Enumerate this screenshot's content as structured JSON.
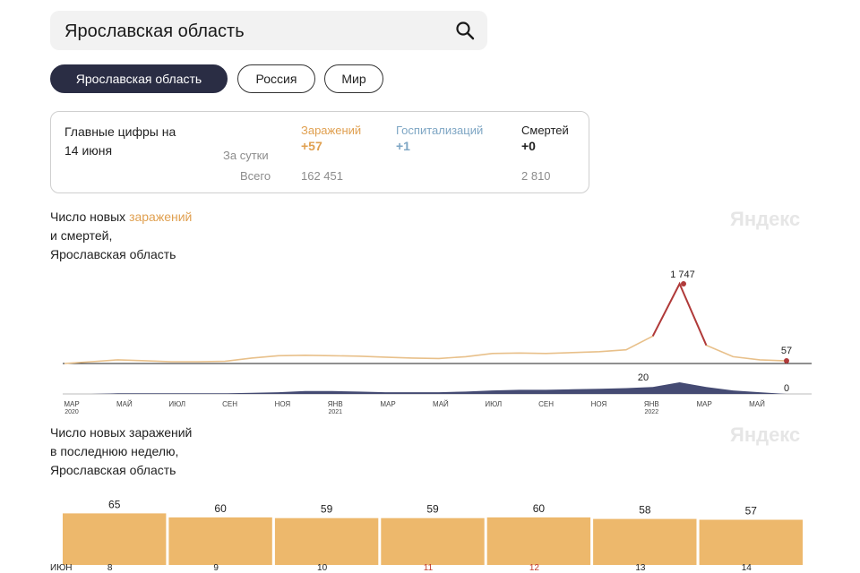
{
  "search": {
    "value": "Ярославская область",
    "icon": "search-icon"
  },
  "chips": [
    {
      "label": "Ярославская область",
      "active": true
    },
    {
      "label": "Россия",
      "active": false
    },
    {
      "label": "Мир",
      "active": false
    }
  ],
  "summary": {
    "heading_line1": "Главные цифры на",
    "heading_line2": "14 июня",
    "row_day_label": "За сутки",
    "row_total_label": "Всего",
    "columns": [
      {
        "label": "Заражений",
        "day": "+57",
        "total": "162 451",
        "color": "#e0a050"
      },
      {
        "label": "Госпитализаций",
        "day": "+1",
        "total": "",
        "color": "#7ea6c4"
      },
      {
        "label": "Смертей",
        "day": "+0",
        "total": "2 810",
        "color": "#1f1f1f"
      }
    ]
  },
  "chart1": {
    "title_line1_prefix": "Число новых ",
    "title_line1_highlight": "заражений",
    "title_line2": "и смертей,",
    "title_line3": "Ярославская область",
    "watermark": "Яндекс",
    "peak_label": "1 747",
    "last_label": "57",
    "deaths_peak_label": "20",
    "deaths_last_label": "0",
    "x_ticks": [
      {
        "label": "МАР",
        "sub": "2020"
      },
      {
        "label": "МАЙ",
        "sub": ""
      },
      {
        "label": "ИЮЛ",
        "sub": ""
      },
      {
        "label": "СЕН",
        "sub": ""
      },
      {
        "label": "НОЯ",
        "sub": ""
      },
      {
        "label": "ЯНВ",
        "sub": "2021"
      },
      {
        "label": "МАР",
        "sub": ""
      },
      {
        "label": "МАЙ",
        "sub": ""
      },
      {
        "label": "ИЮЛ",
        "sub": ""
      },
      {
        "label": "СЕН",
        "sub": ""
      },
      {
        "label": "НОЯ",
        "sub": ""
      },
      {
        "label": "ЯНВ",
        "sub": "2022"
      },
      {
        "label": "МАР",
        "sub": ""
      },
      {
        "label": "МАЙ",
        "sub": ""
      }
    ]
  },
  "chart2": {
    "title_line1": "Число новых заражений",
    "title_line2": "в последнюю неделю,",
    "title_line3": "Ярославская область",
    "watermark": "Яндекс",
    "month_label": "ИЮН"
  },
  "chart_data": [
    {
      "type": "line",
      "x": [
        "2020-03",
        "2020-04",
        "2020-05",
        "2020-06",
        "2020-07",
        "2020-08",
        "2020-09",
        "2020-10",
        "2020-11",
        "2020-12",
        "2021-01",
        "2021-02",
        "2021-03",
        "2021-04",
        "2021-05",
        "2021-06",
        "2021-07",
        "2021-08",
        "2021-09",
        "2021-10",
        "2021-11",
        "2021-12",
        "2022-01",
        "2022-02",
        "2022-03",
        "2022-04",
        "2022-05",
        "2022-06"
      ],
      "series": [
        {
          "name": "Заражений",
          "values": [
            0,
            40,
            80,
            60,
            40,
            40,
            50,
            120,
            170,
            180,
            170,
            160,
            140,
            120,
            110,
            150,
            220,
            230,
            220,
            240,
            260,
            300,
            600,
            1747,
            400,
            150,
            80,
            57
          ],
          "color": "#e0a050"
        },
        {
          "name": "Смертей",
          "values": [
            0,
            0,
            1,
            1,
            1,
            1,
            1,
            2,
            3,
            5,
            5,
            4,
            3,
            3,
            3,
            4,
            6,
            7,
            7,
            8,
            9,
            10,
            12,
            20,
            12,
            6,
            3,
            0
          ],
          "color": "#3d4470"
        }
      ],
      "annotations": [
        "1 747",
        "57",
        "20",
        "0"
      ],
      "ylim": [
        0,
        1800
      ]
    },
    {
      "type": "bar",
      "categories": [
        "8",
        "9",
        "10",
        "11",
        "12",
        "13",
        "14"
      ],
      "values": [
        65,
        60,
        59,
        59,
        60,
        58,
        57
      ],
      "highlight_categories": [
        "11",
        "12"
      ],
      "xlabel": "ИЮН",
      "ylim": [
        0,
        70
      ]
    }
  ]
}
